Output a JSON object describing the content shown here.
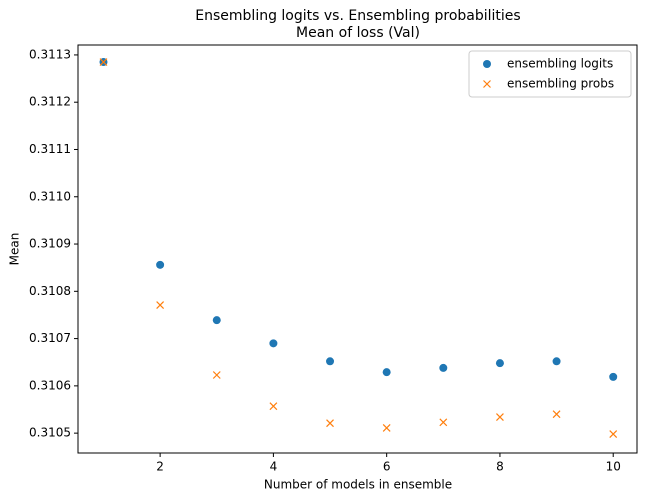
{
  "chart_data": {
    "type": "scatter",
    "title": "Ensembling logits vs. Ensembling probabilities",
    "subtitle": "Mean of loss (Val)",
    "x_label": "Number of models in ensemble",
    "y_label": "Mean",
    "x": [
      1,
      2,
      3,
      4,
      5,
      6,
      7,
      8,
      9,
      10
    ],
    "series": [
      {
        "name": "ensembling logits",
        "color": "#1f77b4",
        "marker": "circle",
        "values": [
          0.311285,
          0.310856,
          0.310739,
          0.31069,
          0.310652,
          0.310629,
          0.310638,
          0.310648,
          0.310652,
          0.310619
        ]
      },
      {
        "name": "ensembling probs",
        "color": "#ff7f0e",
        "marker": "x",
        "values": [
          0.311285,
          0.310771,
          0.310623,
          0.310557,
          0.310521,
          0.310511,
          0.310523,
          0.310534,
          0.31054,
          0.310498
        ]
      }
    ],
    "xlim": [
      0.55,
      10.42
    ],
    "ylim": [
      0.310458,
      0.311321
    ],
    "xticks": [
      2,
      4,
      6,
      8,
      10
    ],
    "yticks": [
      0.3105,
      0.3106,
      0.3107,
      0.3108,
      0.3109,
      {
        "value": 0.311,
        "label": "0.3110"
      },
      0.3111,
      0.3112,
      0.3113
    ],
    "legend": "upper right",
    "grid": false
  }
}
